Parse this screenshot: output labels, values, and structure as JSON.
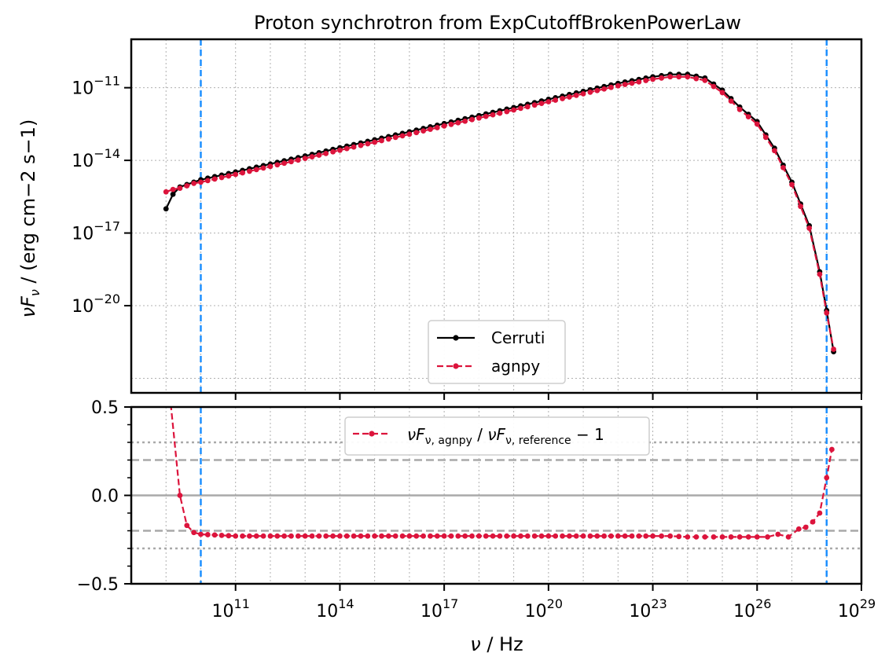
{
  "colors": {
    "cerruti": "#000000",
    "agnpy": "#dc143c",
    "vline": "#1e90ff",
    "ref": "#a9a9a9",
    "grid": "#b0b0b0"
  },
  "chart_data": [
    {
      "type": "line",
      "title": "Proton synchrotron from ExpCutoffBrokenPowerLaw",
      "xlabel_main": "ν",
      "xlabel_unit": "Hz",
      "ylabel_main": "νF",
      "ylabel_sub": "ν",
      "ylabel_unit": "(erg cm−2 s−1)",
      "x_scale": "log",
      "y_scale": "log",
      "xlim_log10": [
        8.0,
        29.0
      ],
      "ylim_log10": [
        -23.6,
        -9.0
      ],
      "yticks": [
        {
          "exp": -11,
          "label": "−11"
        },
        {
          "exp": -14,
          "label": "−14"
        },
        {
          "exp": -17,
          "label": "−17"
        },
        {
          "exp": -20,
          "label": "−20"
        }
      ],
      "vlines_log10_x": [
        10.0,
        28.0
      ],
      "grid": true,
      "legend_position": "lower-center",
      "series": [
        {
          "name": "Cerruti",
          "style": "solid",
          "x_log10": [
            9.0,
            9.2,
            9.4,
            9.6,
            9.8,
            10.0,
            11.0,
            12.0,
            13.0,
            14.0,
            15.0,
            16.0,
            17.0,
            18.0,
            19.0,
            20.0,
            21.0,
            22.0,
            23.0,
            23.5,
            24.0,
            24.5,
            25.0,
            25.5,
            26.0,
            26.5,
            27.0,
            27.5,
            27.8,
            28.0,
            28.2
          ],
          "y_log10": [
            -16.0,
            -15.4,
            -15.1,
            -15.0,
            -14.9,
            -14.8,
            -14.48,
            -14.15,
            -13.82,
            -13.48,
            -13.15,
            -12.82,
            -12.48,
            -12.15,
            -11.82,
            -11.48,
            -11.15,
            -10.82,
            -10.55,
            -10.45,
            -10.45,
            -10.6,
            -11.1,
            -11.8,
            -12.4,
            -13.5,
            -14.9,
            -16.7,
            -18.6,
            -20.2,
            -21.9
          ]
        },
        {
          "name": "agnpy",
          "style": "dashed",
          "x_log10": [
            9.0,
            9.2,
            9.4,
            9.6,
            9.8,
            10.0,
            11.0,
            12.0,
            13.0,
            14.0,
            15.0,
            16.0,
            17.0,
            18.0,
            19.0,
            20.0,
            21.0,
            22.0,
            23.0,
            23.5,
            24.0,
            24.5,
            25.0,
            25.5,
            26.0,
            26.5,
            27.0,
            27.5,
            27.8,
            28.0,
            28.2
          ],
          "y_log10": [
            -15.3,
            -15.2,
            -15.15,
            -15.05,
            -14.95,
            -14.9,
            -14.58,
            -14.25,
            -13.92,
            -13.58,
            -13.25,
            -12.92,
            -12.58,
            -12.25,
            -11.92,
            -11.58,
            -11.25,
            -10.92,
            -10.65,
            -10.55,
            -10.55,
            -10.7,
            -11.2,
            -11.9,
            -12.5,
            -13.6,
            -15.0,
            -16.8,
            -18.7,
            -20.3,
            -21.8
          ]
        }
      ]
    },
    {
      "type": "line",
      "xlabel_main": "ν",
      "xlabel_unit": "Hz",
      "x_scale": "log",
      "xlim_log10": [
        8.0,
        29.0
      ],
      "ylim": [
        -0.5,
        0.5
      ],
      "yticks": [
        {
          "value": 0.5,
          "label": "0.5"
        },
        {
          "value": 0.0,
          "label": "0.0"
        },
        {
          "value": -0.5,
          "label": "−0.5"
        }
      ],
      "xticks": [
        {
          "exp": 11,
          "label": "11"
        },
        {
          "exp": 14,
          "label": "14"
        },
        {
          "exp": 17,
          "label": "17"
        },
        {
          "exp": 20,
          "label": "20"
        },
        {
          "exp": 23,
          "label": "23"
        },
        {
          "exp": 26,
          "label": "26"
        },
        {
          "exp": 29,
          "label": "29"
        }
      ],
      "reference_lines": [
        {
          "y": 0.0,
          "style": "solid"
        },
        {
          "y": 0.2,
          "style": "dashed"
        },
        {
          "y": -0.2,
          "style": "dashed"
        },
        {
          "y": 0.3,
          "style": "dotted"
        },
        {
          "y": -0.3,
          "style": "dotted"
        }
      ],
      "vlines_log10_x": [
        10.0,
        28.0
      ],
      "legend_position": "upper-center",
      "series": [
        {
          "name": "νFν,agnpy / νFν,reference − 1",
          "legend_parts": {
            "a": "νF",
            "sub_a": "ν, agnpy",
            "sep": " / ",
            "b": "νF",
            "sub_b": "ν, reference",
            "tail": " − 1"
          },
          "style": "dashed",
          "x_log10": [
            9.0,
            9.4,
            9.6,
            9.8,
            10.0,
            11.0,
            12.0,
            13.0,
            14.0,
            15.0,
            16.0,
            17.0,
            18.0,
            19.0,
            20.0,
            21.0,
            22.0,
            23.0,
            23.5,
            24.0,
            24.5,
            25.0,
            25.5,
            26.0,
            26.3,
            26.6,
            26.9,
            27.2,
            27.4,
            27.6,
            27.8,
            28.0,
            28.15
          ],
          "y": [
            0.5,
            0.0,
            -0.17,
            -0.21,
            -0.22,
            -0.23,
            -0.23,
            -0.23,
            -0.23,
            -0.23,
            -0.23,
            -0.23,
            -0.23,
            -0.23,
            -0.23,
            -0.23,
            -0.23,
            -0.23,
            -0.23,
            -0.235,
            -0.235,
            -0.235,
            -0.235,
            -0.235,
            -0.235,
            -0.22,
            -0.235,
            -0.19,
            -0.18,
            -0.15,
            -0.1,
            0.1,
            0.26
          ]
        }
      ]
    }
  ]
}
